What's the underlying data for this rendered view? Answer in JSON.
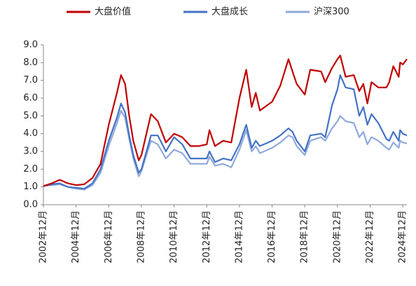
{
  "chart_data": {
    "type": "line",
    "x": [
      "2002-12",
      "2003-06",
      "2003-12",
      "2004-06",
      "2004-12",
      "2005-06",
      "2005-12",
      "2006-06",
      "2006-12",
      "2007-06",
      "2007-09",
      "2007-12",
      "2008-03",
      "2008-06",
      "2008-10",
      "2008-12",
      "2009-07",
      "2009-12",
      "2010-06",
      "2010-12",
      "2011-06",
      "2011-12",
      "2012-06",
      "2012-12",
      "2013-02",
      "2013-06",
      "2013-12",
      "2014-06",
      "2014-12",
      "2015-05",
      "2015-09",
      "2015-12",
      "2016-03",
      "2016-12",
      "2017-06",
      "2017-12",
      "2018-03",
      "2018-06",
      "2018-12",
      "2019-04",
      "2019-12",
      "2020-03",
      "2020-08",
      "2020-12",
      "2021-02",
      "2021-06",
      "2021-12",
      "2022-04",
      "2022-07",
      "2022-10",
      "2023-01",
      "2023-06",
      "2023-12",
      "2024-02",
      "2024-05",
      "2024-09",
      "2024-10",
      "2024-12",
      "2025-03"
    ],
    "series": [
      {
        "name": "大盘价值",
        "color": "#c00000",
        "values": [
          1.05,
          1.2,
          1.4,
          1.2,
          1.1,
          1.15,
          1.5,
          2.3,
          4.5,
          6.3,
          7.3,
          6.8,
          5.0,
          3.6,
          2.5,
          2.8,
          5.1,
          4.7,
          3.5,
          4.0,
          3.8,
          3.3,
          3.3,
          3.4,
          4.2,
          3.3,
          3.6,
          3.5,
          6.0,
          7.6,
          5.5,
          6.3,
          5.3,
          5.8,
          6.7,
          8.2,
          7.5,
          6.8,
          6.2,
          7.6,
          7.5,
          6.9,
          7.7,
          8.2,
          8.4,
          7.2,
          7.3,
          6.4,
          6.8,
          5.7,
          6.9,
          6.6,
          6.6,
          6.9,
          7.8,
          7.2,
          8.0,
          7.9,
          8.2
        ]
      },
      {
        "name": "大盘成长",
        "color": "#4472c4",
        "values": [
          1.05,
          1.15,
          1.2,
          1.0,
          0.95,
          0.9,
          1.2,
          2.0,
          3.6,
          4.9,
          5.7,
          5.2,
          3.9,
          2.8,
          1.8,
          2.0,
          3.9,
          3.9,
          3.0,
          3.8,
          3.4,
          2.6,
          2.6,
          2.6,
          3.0,
          2.4,
          2.6,
          2.5,
          3.4,
          4.5,
          3.2,
          3.6,
          3.3,
          3.6,
          3.9,
          4.3,
          4.1,
          3.6,
          3.0,
          3.9,
          4.0,
          3.8,
          5.6,
          6.5,
          7.3,
          6.6,
          6.5,
          5.0,
          5.5,
          4.5,
          5.1,
          4.6,
          3.7,
          3.6,
          4.1,
          3.6,
          4.2,
          4.0,
          3.9
        ]
      },
      {
        "name": "沪深300",
        "color": "#8fa9dc",
        "values": [
          1.05,
          1.1,
          1.15,
          1.0,
          0.9,
          0.85,
          1.1,
          1.8,
          3.3,
          4.6,
          5.3,
          4.9,
          3.7,
          2.6,
          1.6,
          1.9,
          3.6,
          3.4,
          2.6,
          3.1,
          2.9,
          2.3,
          2.3,
          2.3,
          2.7,
          2.2,
          2.3,
          2.1,
          3.1,
          4.2,
          3.0,
          3.3,
          2.9,
          3.2,
          3.5,
          3.9,
          3.8,
          3.3,
          2.8,
          3.6,
          3.8,
          3.6,
          4.3,
          4.7,
          5.0,
          4.7,
          4.6,
          3.8,
          4.1,
          3.4,
          3.8,
          3.6,
          3.2,
          3.1,
          3.5,
          3.2,
          3.6,
          3.5,
          3.45
        ]
      }
    ],
    "xlim": [
      "2002-12",
      "2025-03"
    ],
    "xticks": [
      {
        "value": "2002-12",
        "label": "2002年12月"
      },
      {
        "value": "2004-12",
        "label": "2004年12月"
      },
      {
        "value": "2006-12",
        "label": "2006年12月"
      },
      {
        "value": "2008-12",
        "label": "2008年12月"
      },
      {
        "value": "2010-12",
        "label": "2010年12月"
      },
      {
        "value": "2012-12",
        "label": "2012年12月"
      },
      {
        "value": "2014-12",
        "label": "2014年12月"
      },
      {
        "value": "2016-12",
        "label": "2016年12月"
      },
      {
        "value": "2018-12",
        "label": "2018年12月"
      },
      {
        "value": "2020-12",
        "label": "2020年12月"
      },
      {
        "value": "2022-12",
        "label": "2022年12月"
      },
      {
        "value": "2024-12",
        "label": "2024年12月"
      }
    ],
    "ylim": [
      0,
      9
    ],
    "yticks": [
      {
        "value": 0,
        "label": "0.0"
      },
      {
        "value": 1,
        "label": "1.0"
      },
      {
        "value": 2,
        "label": "2.0"
      },
      {
        "value": 3,
        "label": "3.0"
      },
      {
        "value": 4,
        "label": "4.0"
      },
      {
        "value": 5,
        "label": "5.0"
      },
      {
        "value": 6,
        "label": "6.0"
      },
      {
        "value": 7,
        "label": "7.0"
      },
      {
        "value": 8,
        "label": "8.0"
      },
      {
        "value": 9,
        "label": "9.0"
      }
    ],
    "legend": "top"
  }
}
